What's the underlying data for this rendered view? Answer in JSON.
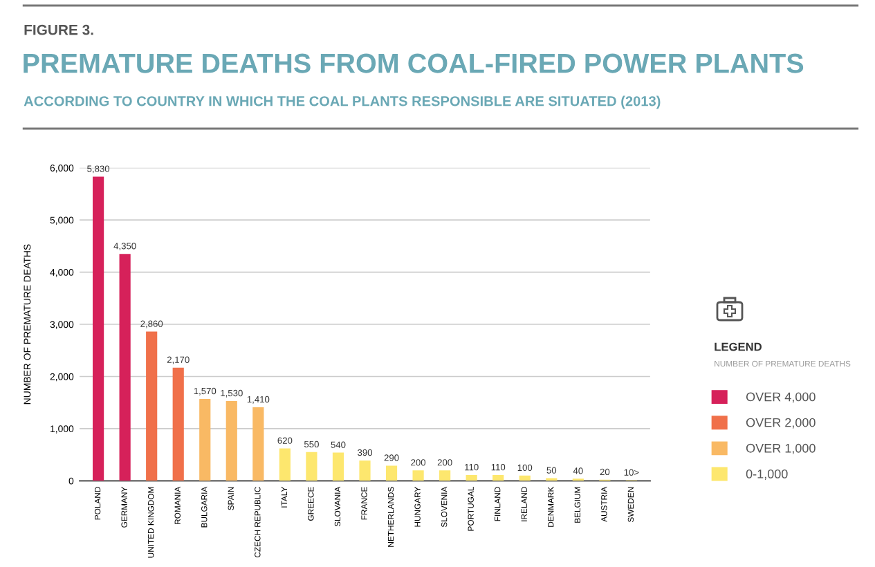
{
  "chart_data": {
    "type": "bar",
    "title": "PREMATURE DEATHS FROM COAL-FIRED POWER PLANTS",
    "subtitle": "ACCORDING TO COUNTRY IN WHICH THE COAL PLANTS RESPONSIBLE ARE SITUATED (2013)",
    "ylabel": "NUMBER OF PREMATURE DEATHS",
    "legend_title": "LEGEND",
    "annotations": [
      "FIGURE 3.",
      "NUMBER OF PREMATURE DEATHS"
    ],
    "categories": [
      "POLAND",
      "GERMANY",
      "UNITED KINGDOM",
      "ROMANIA",
      "BULGARIA",
      "SPAIN",
      "CZECH REPUBLIC",
      "ITALY",
      "GREECE",
      "SLOVANIA",
      "FRANCE",
      "NETHERLANDS",
      "HUNGARY",
      "SLOVENIA",
      "PORTUGAL",
      "FINLAND",
      "IRELAND",
      "DENMARK",
      "BELGIUM",
      "AUSTRIA",
      "SWEDEN"
    ],
    "series": [
      {
        "name": "OVER 4,000",
        "color": "#d6215a",
        "values": [
          5830,
          4350,
          null,
          null,
          null,
          null,
          null,
          null,
          null,
          null,
          null,
          null,
          null,
          null,
          null,
          null,
          null,
          null,
          null,
          null,
          null
        ],
        "value_labels": [
          "5,830",
          "4,350",
          null,
          null,
          null,
          null,
          null,
          null,
          null,
          null,
          null,
          null,
          null,
          null,
          null,
          null,
          null,
          null,
          null,
          null,
          null
        ]
      },
      {
        "name": "OVER 2,000",
        "color": "#f0704a",
        "values": [
          null,
          null,
          2860,
          2170,
          null,
          null,
          null,
          null,
          null,
          null,
          null,
          null,
          null,
          null,
          null,
          null,
          null,
          null,
          null,
          null,
          null
        ],
        "value_labels": [
          null,
          null,
          "2,860",
          "2,170",
          null,
          null,
          null,
          null,
          null,
          null,
          null,
          null,
          null,
          null,
          null,
          null,
          null,
          null,
          null,
          null,
          null
        ]
      },
      {
        "name": "OVER 1,000",
        "color": "#f9b964",
        "values": [
          null,
          null,
          null,
          null,
          1570,
          1530,
          1410,
          null,
          null,
          null,
          null,
          null,
          null,
          null,
          null,
          null,
          null,
          null,
          null,
          null,
          null
        ],
        "value_labels": [
          null,
          null,
          null,
          null,
          "1,570",
          "1,530",
          "1,410",
          null,
          null,
          null,
          null,
          null,
          null,
          null,
          null,
          null,
          null,
          null,
          null,
          null,
          null
        ]
      },
      {
        "name": "0-1,000",
        "color": "#fde76e",
        "values": [
          null,
          null,
          null,
          null,
          null,
          null,
          null,
          620,
          550,
          540,
          390,
          290,
          200,
          200,
          110,
          110,
          100,
          50,
          40,
          20,
          10
        ],
        "value_labels": [
          null,
          null,
          null,
          null,
          null,
          null,
          null,
          "620",
          "550",
          "540",
          "390",
          "290",
          "200",
          "200",
          "110",
          "110",
          "100",
          "50",
          "40",
          "20",
          "10>"
        ]
      }
    ],
    "ylim": [
      0,
      6000
    ],
    "yticks": [
      {
        "value": 0,
        "label": "0"
      },
      {
        "value": 1000,
        "label": "1,000"
      },
      {
        "value": 2000,
        "label": "2,000"
      },
      {
        "value": 3000,
        "label": "3,000"
      },
      {
        "value": 4000,
        "label": "4,000"
      },
      {
        "value": 5000,
        "label": "5,000"
      },
      {
        "value": 6000,
        "label": "6,000"
      }
    ],
    "grid": "y",
    "legend": "right"
  }
}
